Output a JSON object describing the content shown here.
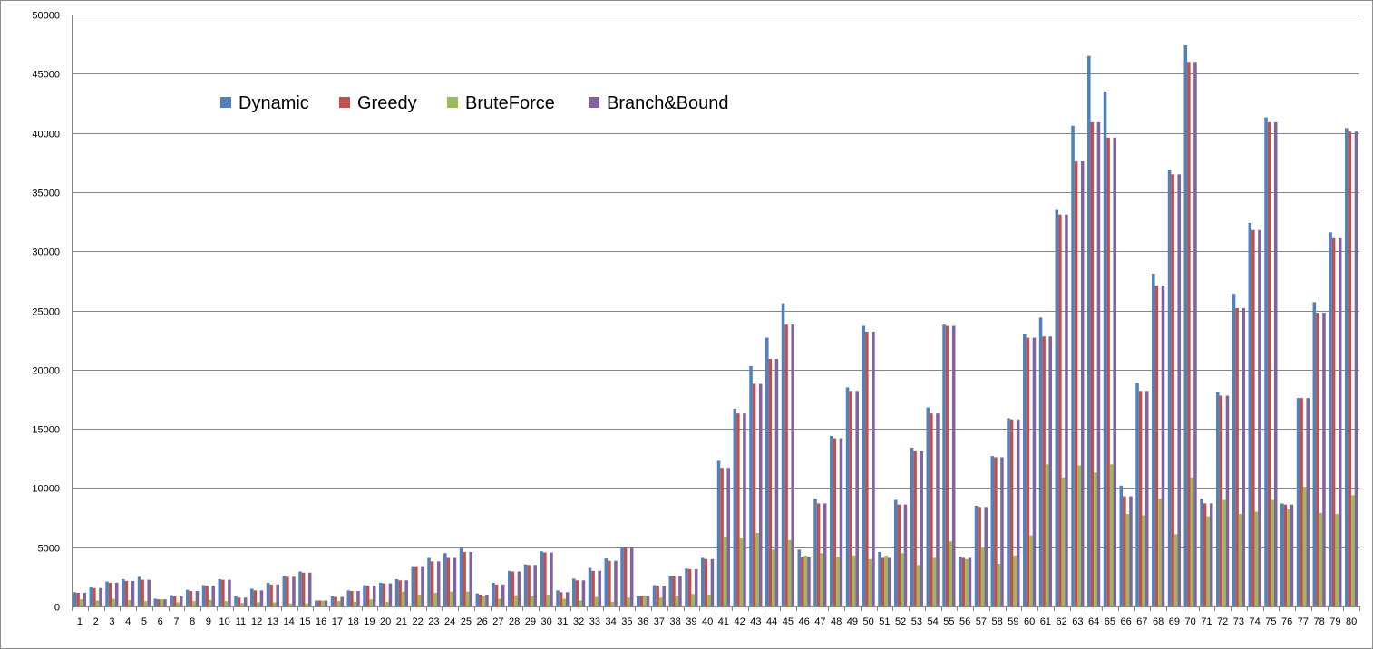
{
  "chart_data": {
    "type": "bar",
    "title": "",
    "xlabel": "",
    "ylabel": "",
    "ylim": [
      0,
      50000
    ],
    "yticks": [
      0,
      5000,
      10000,
      15000,
      20000,
      25000,
      30000,
      35000,
      40000,
      45000,
      50000
    ],
    "grid": true,
    "legend_position": "top-left",
    "categories": [
      "1",
      "2",
      "3",
      "4",
      "5",
      "6",
      "7",
      "8",
      "9",
      "10",
      "11",
      "12",
      "13",
      "14",
      "15",
      "16",
      "17",
      "18",
      "19",
      "20",
      "21",
      "22",
      "23",
      "24",
      "25",
      "26",
      "27",
      "28",
      "29",
      "30",
      "31",
      "32",
      "33",
      "34",
      "35",
      "36",
      "37",
      "38",
      "39",
      "40",
      "41",
      "42",
      "43",
      "44",
      "45",
      "46",
      "47",
      "48",
      "49",
      "50",
      "51",
      "52",
      "53",
      "54",
      "55",
      "56",
      "57",
      "58",
      "59",
      "60",
      "61",
      "62",
      "63",
      "64",
      "65",
      "66",
      "67",
      "68",
      "69",
      "70",
      "71",
      "72",
      "73",
      "74",
      "75",
      "76",
      "77",
      "78",
      "79",
      "80"
    ],
    "series": [
      {
        "name": "Dynamic",
        "color": "#4F81BD",
        "values": [
          1200,
          1600,
          2100,
          2300,
          2500,
          650,
          950,
          1400,
          1800,
          2300,
          900,
          1500,
          2000,
          2550,
          2950,
          500,
          850,
          1350,
          1800,
          2000,
          2300,
          3400,
          4100,
          4500,
          4900,
          1100,
          2000,
          3000,
          3550,
          4650,
          1350,
          2350,
          3250,
          4050,
          5000,
          850,
          1800,
          2550,
          3200,
          4100,
          12300,
          16700,
          20300,
          22700,
          25600,
          4800,
          9100,
          14400,
          18500,
          23700,
          4600,
          9000,
          13400,
          16800,
          23800,
          4200,
          8500,
          12700,
          15900,
          23000,
          24400,
          33500,
          40600,
          46500,
          43500,
          10200,
          18900,
          28100,
          36900,
          47400,
          9100,
          18100,
          26400,
          32400,
          41300,
          8700,
          17600,
          25700,
          31600,
          40400
        ]
      },
      {
        "name": "Greedy",
        "color": "#C0504D",
        "values": [
          1150,
          1550,
          2000,
          2150,
          2250,
          600,
          850,
          1300,
          1750,
          2250,
          750,
          1350,
          1850,
          2500,
          2850,
          500,
          800,
          1300,
          1750,
          1950,
          2200,
          3400,
          3800,
          4100,
          4600,
          1000,
          1850,
          2950,
          3500,
          4550,
          1200,
          2200,
          3000,
          3850,
          4950,
          850,
          1750,
          2550,
          3150,
          4000,
          11700,
          16300,
          18800,
          20900,
          23800,
          4200,
          8700,
          14200,
          18200,
          23200,
          4100,
          8600,
          13100,
          16300,
          23700,
          4100,
          8400,
          12600,
          15800,
          22700,
          22800,
          33100,
          37600,
          40900,
          39600,
          9300,
          18200,
          27100,
          36500,
          46000,
          8700,
          17800,
          25200,
          31800,
          40900,
          8600,
          17600,
          24800,
          31100,
          40100
        ]
      },
      {
        "name": "BruteForce",
        "color": "#9BBB59",
        "values": [
          600,
          500,
          650,
          550,
          450,
          600,
          350,
          450,
          550,
          450,
          300,
          350,
          350,
          250,
          250,
          500,
          450,
          400,
          600,
          400,
          1250,
          1000,
          1150,
          1250,
          1250,
          850,
          650,
          950,
          850,
          1000,
          650,
          500,
          800,
          400,
          750,
          850,
          750,
          900,
          1050,
          1000,
          5900,
          5800,
          6200,
          4800,
          5600,
          4300,
          4500,
          4200,
          4300,
          4000,
          4300,
          4500,
          3500,
          4100,
          5500,
          4000,
          5000,
          3600,
          4300,
          6000,
          12000,
          10900,
          11900,
          11300,
          12000,
          7800,
          7700,
          9100,
          6100,
          10900,
          7600,
          9000,
          7800,
          8000,
          9000,
          8200,
          10100,
          7900,
          7800,
          9400
        ]
      },
      {
        "name": "Branch&Bound",
        "color": "#8064A2",
        "values": [
          1150,
          1550,
          2000,
          2150,
          2250,
          600,
          850,
          1300,
          1750,
          2250,
          750,
          1350,
          1850,
          2500,
          2850,
          500,
          800,
          1300,
          1750,
          1950,
          2200,
          3400,
          3800,
          4100,
          4600,
          1000,
          1850,
          2950,
          3500,
          4550,
          1200,
          2200,
          3000,
          3850,
          4950,
          850,
          1750,
          2550,
          3150,
          4000,
          11700,
          16300,
          18800,
          20900,
          23800,
          4200,
          8700,
          14200,
          18200,
          23200,
          4100,
          8600,
          13100,
          16300,
          23700,
          4100,
          8400,
          12600,
          15800,
          22700,
          22800,
          33100,
          37600,
          40900,
          39600,
          9300,
          18200,
          27100,
          36500,
          46000,
          8700,
          17800,
          25200,
          31800,
          40900,
          8600,
          17600,
          24800,
          31100,
          40100
        ]
      }
    ]
  }
}
